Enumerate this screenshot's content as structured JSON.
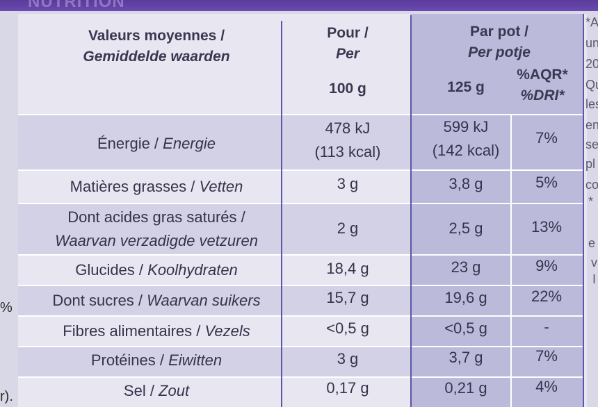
{
  "banner": {
    "text": "NUTRITION"
  },
  "header": {
    "col1_line1": "Valeurs moyennes /",
    "col1_line2": "Gemiddelde waarden",
    "col2_line1": "Pour /",
    "col2_line2": "Per",
    "col2_sub": "100 g",
    "col3_line1": "Par pot /",
    "col3_line2": "Per potje",
    "col3_sub": "125 g",
    "col4_line1": "%AQR*",
    "col4_line2": "%DRI*"
  },
  "rows": [
    {
      "label_fr": "Énergie / ",
      "label_nl": "Energie",
      "per100_1": "478 kJ",
      "per100_2": "(113 kcal)",
      "perpot_1": "599 kJ",
      "perpot_2": "(142 kcal)",
      "pct": "7%"
    },
    {
      "label_fr": "Matières grasses / ",
      "label_nl": "Vetten",
      "per100": "3 g",
      "perpot": "3,8 g",
      "pct": "5%"
    },
    {
      "label_fr": "Dont acides gras saturés /",
      "label_nl": "Waarvan verzadigde vetzuren",
      "per100": "2 g",
      "perpot": "2,5 g",
      "pct": "13%"
    },
    {
      "label_fr": "Glucides / ",
      "label_nl": "Koolhydraten",
      "per100": "18,4 g",
      "perpot": "23 g",
      "pct": "9%"
    },
    {
      "label_fr": "Dont sucres / ",
      "label_nl": "Waarvan suikers",
      "per100": "15,7 g",
      "perpot": "19,6 g",
      "pct": "22%"
    },
    {
      "label_fr": "Fibres alimentaires / ",
      "label_nl": "Vezels",
      "per100": "<0,5 g",
      "perpot": "<0,5 g",
      "pct": "-"
    },
    {
      "label_fr": "Protéines / ",
      "label_nl": "Eiwitten",
      "per100": "3 g",
      "perpot": "3,7 g",
      "pct": "7%"
    },
    {
      "label_fr": "Sel / ",
      "label_nl": "Zout",
      "per100": "0,17 g",
      "perpot": "0,21 g",
      "pct": "4%"
    }
  ],
  "side_fragments": [
    "*Ap",
    "un",
    "20",
    "Qu",
    "les",
    "en",
    "se",
    "pl",
    "co",
    "*",
    "e",
    "v",
    "I"
  ],
  "left_fragments": [
    "%",
    "r)."
  ]
}
